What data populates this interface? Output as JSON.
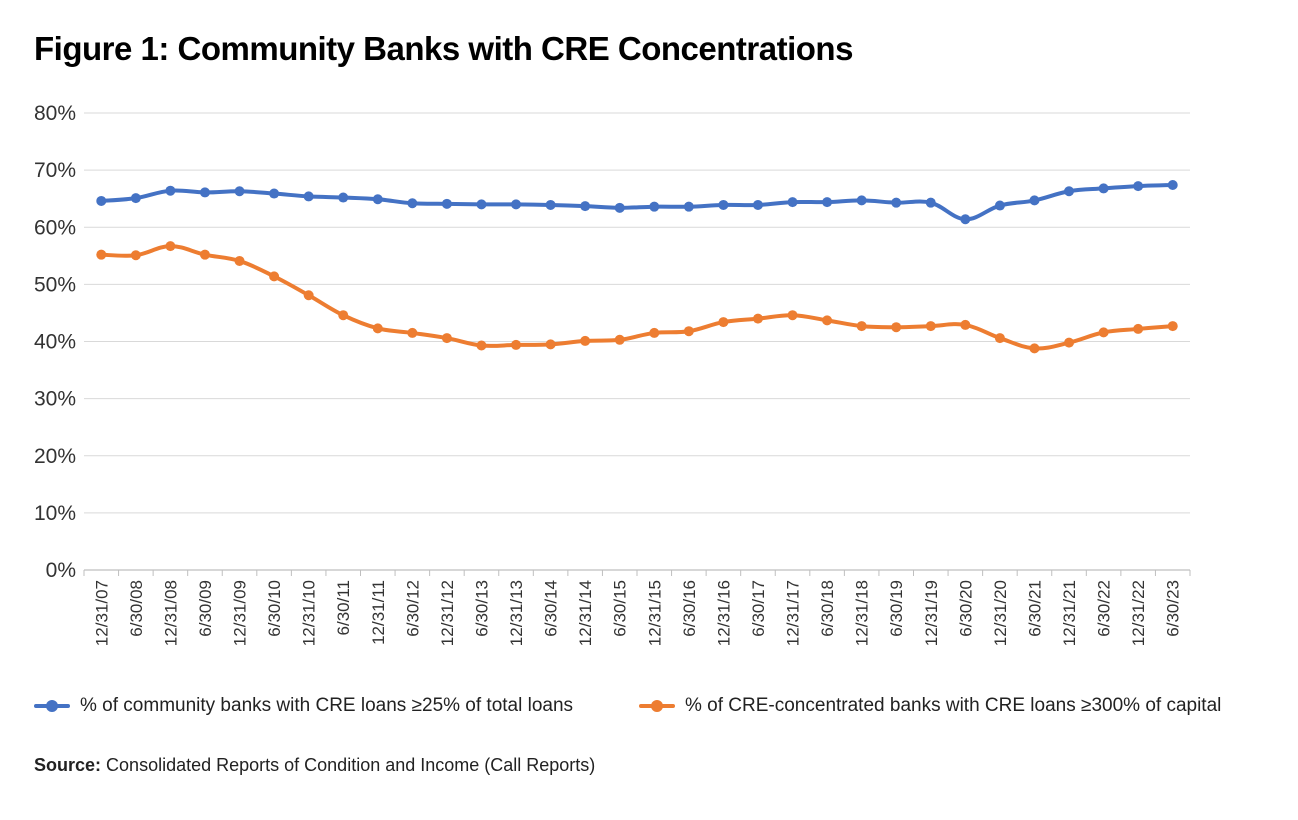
{
  "title": "Figure 1: Community Banks with CRE Concentrations",
  "source": {
    "label": "Source:",
    "text": "Consolidated Reports of Condition and Income (Call Reports)"
  },
  "colors": {
    "series1": "#4472C4",
    "series2": "#ED7D31",
    "grid": "#d9d9d9",
    "axis": "#bfbfbf"
  },
  "chart_data": {
    "type": "line",
    "title": "Figure 1: Community Banks with CRE Concentrations",
    "xlabel": "",
    "ylabel": "",
    "ylim": [
      0,
      80
    ],
    "yticks": [
      "0%",
      "10%",
      "20%",
      "30%",
      "40%",
      "50%",
      "60%",
      "70%",
      "80%"
    ],
    "grid": true,
    "legend_position": "bottom",
    "categories": [
      "12/31/07",
      "6/30/08",
      "12/31/08",
      "6/30/09",
      "12/31/09",
      "6/30/10",
      "12/31/10",
      "6/30/11",
      "12/31/11",
      "6/30/12",
      "12/31/12",
      "6/30/13",
      "12/31/13",
      "6/30/14",
      "12/31/14",
      "6/30/15",
      "12/31/15",
      "6/30/16",
      "12/31/16",
      "6/30/17",
      "12/31/17",
      "6/30/18",
      "12/31/18",
      "6/30/19",
      "12/31/19",
      "6/30/20",
      "12/31/20",
      "6/30/21",
      "12/31/21",
      "6/30/22",
      "12/31/22",
      "6/30/23"
    ],
    "series": [
      {
        "name": "% of community banks with CRE loans ≥25% of total loans",
        "color": "#4472C4",
        "values": [
          64.6,
          65.1,
          66.4,
          66.1,
          66.3,
          65.9,
          65.4,
          65.2,
          64.9,
          64.2,
          64.1,
          64.0,
          64.0,
          63.9,
          63.7,
          63.4,
          63.6,
          63.6,
          63.9,
          63.9,
          64.4,
          64.4,
          64.7,
          64.3,
          64.3,
          61.4,
          63.8,
          64.7,
          66.3,
          66.8,
          67.2,
          67.4
        ]
      },
      {
        "name": "% of CRE-concentrated banks with CRE loans ≥300% of capital",
        "color": "#ED7D31",
        "values": [
          55.2,
          55.1,
          56.7,
          55.2,
          54.1,
          51.4,
          48.1,
          44.6,
          42.3,
          41.5,
          40.6,
          39.3,
          39.4,
          39.5,
          40.1,
          40.3,
          41.5,
          41.8,
          43.4,
          44.0,
          44.6,
          43.7,
          42.7,
          42.5,
          42.7,
          42.9,
          40.6,
          38.8,
          39.8,
          41.6,
          42.2,
          42.7
        ]
      }
    ]
  }
}
